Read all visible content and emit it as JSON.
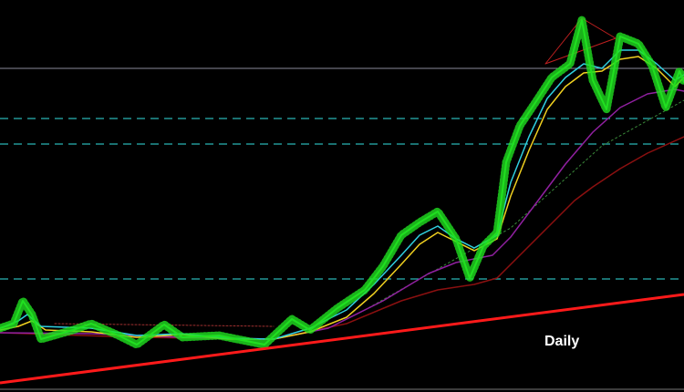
{
  "label": "Daily"
}
